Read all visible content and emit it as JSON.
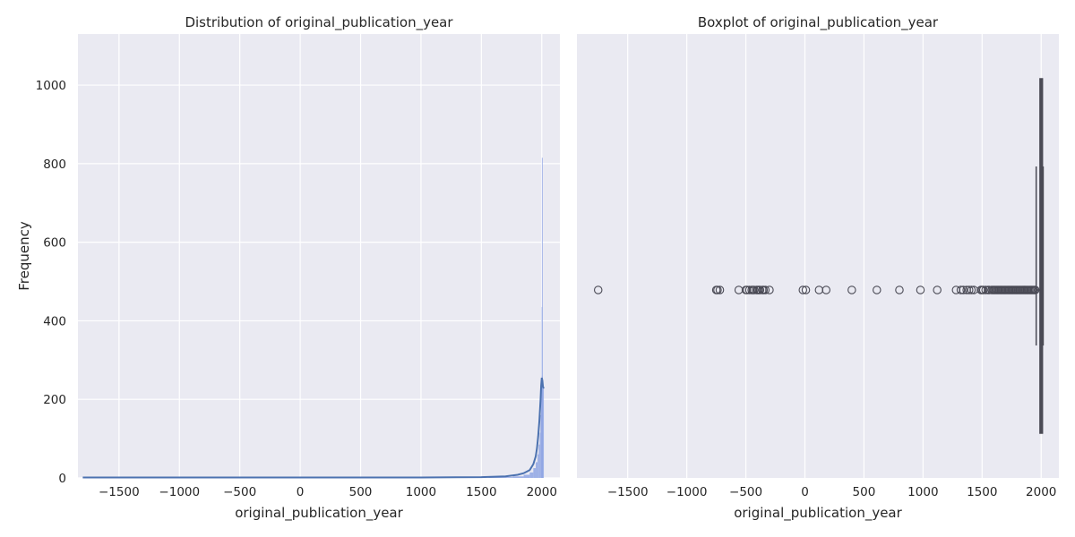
{
  "chart_data": [
    {
      "type": "histogram",
      "title": "Distribution of original_publication_year",
      "xlabel": "original_publication_year",
      "ylabel": "Frequency",
      "xlim": [
        -1840,
        2150
      ],
      "ylim": [
        0,
        1130
      ],
      "x_ticks": [
        -1500,
        -1000,
        -500,
        0,
        500,
        1000,
        1500,
        2000
      ],
      "x_tick_labels": [
        "−1500",
        "−1000",
        "−500",
        "0",
        "500",
        "1000",
        "1500",
        "2000"
      ],
      "y_ticks": [
        0,
        200,
        400,
        600,
        800,
        1000
      ],
      "y_tick_labels": [
        "0",
        "200",
        "400",
        "600",
        "800",
        "1000"
      ],
      "grid": true,
      "bar_color": "#8fa6e4",
      "kde_color": "#4c72b0",
      "bins": [
        {
          "x0": 1560,
          "x1": 1760,
          "count": 2
        },
        {
          "x0": 1760,
          "x1": 1850,
          "count": 4
        },
        {
          "x0": 1850,
          "x1": 1900,
          "count": 8
        },
        {
          "x0": 1900,
          "x1": 1930,
          "count": 14
        },
        {
          "x0": 1930,
          "x1": 1950,
          "count": 25
        },
        {
          "x0": 1950,
          "x1": 1965,
          "count": 40
        },
        {
          "x0": 1965,
          "x1": 1975,
          "count": 60
        },
        {
          "x0": 1975,
          "x1": 1983,
          "count": 85
        },
        {
          "x0": 1983,
          "x1": 1989,
          "count": 115
        },
        {
          "x0": 1989,
          "x1": 1994,
          "count": 160
        },
        {
          "x0": 1994,
          "x1": 1997,
          "count": 200
        },
        {
          "x0": 1997,
          "x1": 1999,
          "count": 240
        },
        {
          "x0": 1999,
          "x1": 2000,
          "count": 435
        },
        {
          "x0": 2000,
          "x1": 2001,
          "count": 260
        },
        {
          "x0": 2001,
          "x1": 2002,
          "count": 815
        },
        {
          "x0": 2002,
          "x1": 2006,
          "count": 245
        },
        {
          "x0": 2006,
          "x1": 2017,
          "count": 230
        }
      ],
      "kde": {
        "x": [
          -1800,
          1000,
          1500,
          1700,
          1800,
          1850,
          1900,
          1930,
          1950,
          1960,
          1970,
          1980,
          1990,
          1995,
          2000,
          2005,
          2010,
          2017
        ],
        "y": [
          1,
          1,
          2,
          4,
          8,
          12,
          20,
          35,
          55,
          75,
          105,
          145,
          200,
          235,
          255,
          248,
          232,
          228
        ]
      }
    },
    {
      "type": "boxplot",
      "title": "Boxplot of original_publication_year",
      "xlabel": "original_publication_year",
      "xlim": [
        -1930,
        2150
      ],
      "x_ticks": [
        -1500,
        -1000,
        -500,
        0,
        500,
        1000,
        1500,
        2000
      ],
      "x_tick_labels": [
        "−1500",
        "−1000",
        "−500",
        "0",
        "500",
        "1000",
        "1500",
        "2000"
      ],
      "grid": true,
      "box_color": "#4a4a55",
      "box": {
        "q1": 1990,
        "median": 2004,
        "q3": 2011,
        "whisker_low": 1958,
        "whisker_high": 2017
      },
      "outliers": [
        -1750,
        -750,
        -740,
        -720,
        -560,
        -500,
        -490,
        -470,
        -450,
        -440,
        -430,
        -410,
        -400,
        -390,
        -380,
        -360,
        -350,
        -335,
        -300,
        -17,
        8,
        120,
        180,
        397,
        609,
        800,
        978,
        1120,
        1280,
        1320,
        1340,
        1370,
        1390,
        1410,
        1430,
        1490,
        1500,
        1510,
        1530,
        1550,
        1560,
        1580,
        1590,
        1600,
        1610,
        1620,
        1630,
        1640,
        1650,
        1660,
        1670,
        1680,
        1690,
        1700,
        1710,
        1720,
        1730,
        1740,
        1750,
        1760,
        1770,
        1780,
        1790,
        1800,
        1810,
        1820,
        1830,
        1840,
        1850,
        1860,
        1870,
        1880,
        1890,
        1900,
        1910,
        1920,
        1930,
        1940,
        1950
      ]
    }
  ]
}
